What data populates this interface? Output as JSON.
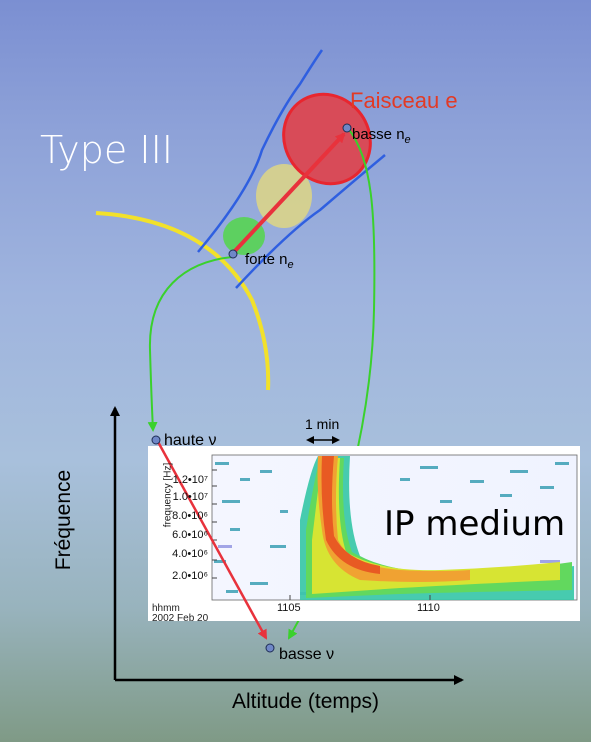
{
  "labels": {
    "type": "Type III",
    "beam": "Faisceau e",
    "low_density": "basse n",
    "high_density": "forte n",
    "subscript_e": "e",
    "high_freq": "haute ν",
    "low_freq": "basse ν",
    "medium": "IP medium",
    "y_axis": "Fréquence",
    "x_axis": "Altitude (temps)",
    "time_scale": "1 min"
  },
  "spectrogram": {
    "y_title": "frequency [Hz]",
    "y_ticks": [
      "1.2•10⁷",
      "1.0•10⁷",
      "8.0•10⁶",
      "6.0•10⁶",
      "4.0•10⁶",
      "2.0•10⁶"
    ],
    "x_ticks": [
      "1105",
      "1110"
    ],
    "time_unit": "hhmm",
    "date": "2002 Feb 20"
  },
  "colors": {
    "beam": "#e23a25",
    "flux_tube": "#2f5fe0",
    "arrow": "#e8323c",
    "path": "#3ad12c",
    "shock_front": "#f2e12a"
  }
}
